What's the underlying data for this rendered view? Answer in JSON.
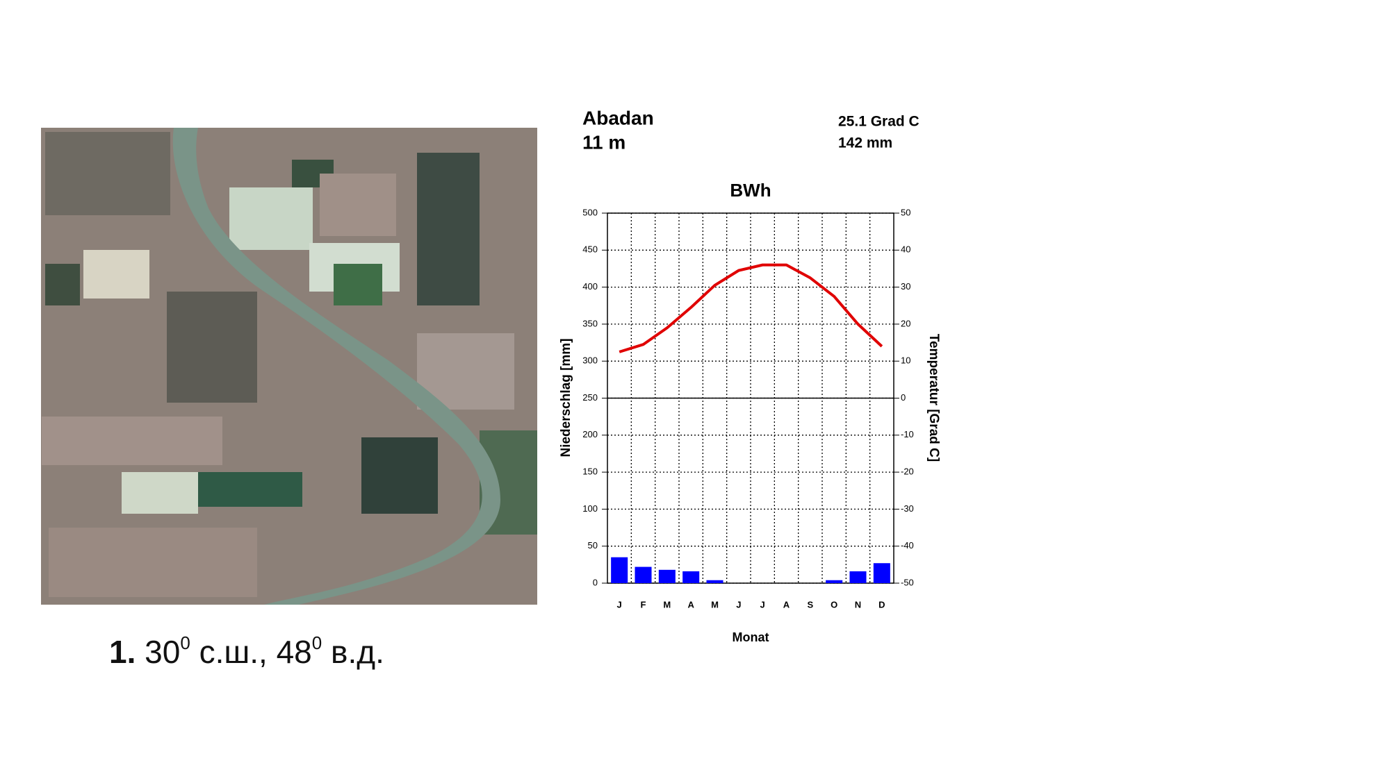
{
  "chart_data": {
    "type": "bar",
    "station": "Abadan",
    "elevation": "11 m",
    "annual_temp": "25.1 Grad C",
    "annual_precip": "142 mm",
    "title": "BWh",
    "xlabel": "Monat",
    "ylabel": "Niederschlag [mm]",
    "y2label": "Temperatur [Grad C]",
    "categories": [
      "J",
      "F",
      "M",
      "A",
      "M",
      "J",
      "J",
      "A",
      "S",
      "O",
      "N",
      "D"
    ],
    "series": [
      {
        "color": "#0000ff",
        "values": [
          35,
          22,
          18,
          16,
          4,
          0,
          0,
          0,
          0,
          4,
          16,
          27
        ]
      },
      {
        "type": "line",
        "axis": "y2",
        "color": "#e00000",
        "values": [
          12.5,
          14.5,
          19,
          24.5,
          30.5,
          34.5,
          36,
          36,
          32.5,
          27.5,
          20,
          14
        ]
      }
    ],
    "ylim": [
      0,
      500
    ],
    "yticks": [
      0,
      50,
      100,
      150,
      200,
      250,
      300,
      350,
      400,
      450,
      500
    ],
    "y2lim": [
      -50,
      50
    ],
    "y2ticks": [
      -50,
      -40,
      -30,
      -20,
      -10,
      0,
      10,
      20,
      30,
      40,
      50
    ],
    "grid": true
  },
  "caption": {
    "number": "1.",
    "parts": [
      " 30",
      "0",
      " с.ш., 48",
      "0",
      " в.д."
    ]
  }
}
